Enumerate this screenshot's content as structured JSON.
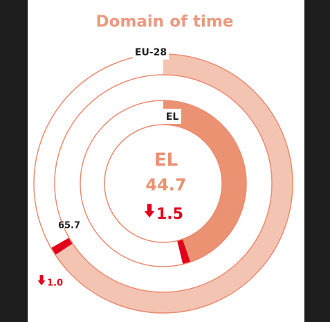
{
  "chart_data": {
    "type": "radial_bar",
    "title": "Domain of time",
    "rlim": [
      0,
      100
    ],
    "series": [
      {
        "name": "EU-28",
        "value": 65.7,
        "change": 1.0,
        "change_label": "1.0",
        "change_direction": "down",
        "color": "#f4c4b3"
      },
      {
        "name": "EL",
        "value": 44.7,
        "change": 1.5,
        "change_label": "1.5",
        "change_direction": "down",
        "color": "#eb9272"
      }
    ],
    "change_color": "#e3001b",
    "outline_color": "#ec8a70"
  }
}
